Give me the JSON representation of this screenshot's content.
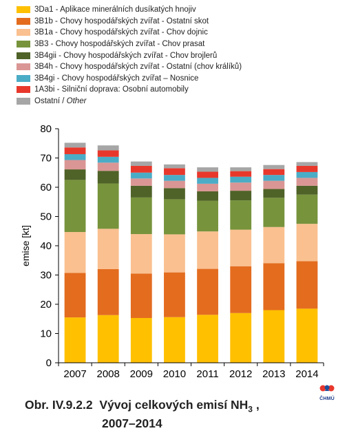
{
  "chart_data": {
    "type": "bar",
    "stacked": true,
    "categories": [
      "2007",
      "2008",
      "2009",
      "2010",
      "2011",
      "2012",
      "2013",
      "2014"
    ],
    "ylabel": "emise [kt]",
    "ylim": [
      0,
      80
    ],
    "yticks": [
      0,
      10,
      20,
      30,
      40,
      50,
      60,
      70,
      80
    ],
    "grid": false,
    "legend_position": "top-left",
    "series": [
      {
        "name": "3Da1 - Aplikace minerálních dusíkatých hnojiv",
        "color": "#FFC000",
        "values": [
          15.5,
          16.3,
          15.3,
          15.6,
          16.4,
          17.0,
          18.0,
          18.5
        ]
      },
      {
        "name": "3B1b - Chovy hospodářských zvířat - Ostatní skot",
        "color": "#E36C1F",
        "values": [
          15.2,
          15.7,
          15.2,
          15.3,
          15.7,
          16.0,
          16.0,
          16.2
        ]
      },
      {
        "name": "3B1a - Chovy hospodářských zvířat - Chov dojnic",
        "color": "#FAC090",
        "values": [
          14.0,
          13.8,
          13.5,
          13.0,
          12.8,
          12.5,
          12.4,
          12.8
        ]
      },
      {
        "name": "3B3 - Chovy hospodářských zvířat - Chov prasat",
        "color": "#77933C",
        "values": [
          17.8,
          15.5,
          12.5,
          12.0,
          10.5,
          10.0,
          10.0,
          10.0
        ]
      },
      {
        "name": "3B4gii - Chovy hospodářských zvířat - Chov brojlerů",
        "color": "#4F6228",
        "values": [
          3.6,
          4.3,
          4.0,
          3.8,
          3.2,
          3.3,
          3.0,
          3.0
        ]
      },
      {
        "name": "3B4h - Chovy hospodářských zvířat - Ostatní (chov králíků)",
        "color": "#DA9694",
        "values": [
          3.2,
          2.8,
          2.5,
          2.5,
          2.6,
          2.8,
          2.8,
          2.7
        ]
      },
      {
        "name": "3B4gi - Chovy hospodářských zvířat – Nosnice",
        "color": "#4BACC6",
        "values": [
          2.0,
          2.0,
          2.0,
          2.0,
          2.0,
          2.0,
          2.0,
          2.0
        ]
      },
      {
        "name": "1A3bi - Silniční doprava: Osobní automobily",
        "color": "#E8382C",
        "values": [
          2.3,
          2.2,
          2.3,
          2.3,
          2.1,
          1.9,
          2.0,
          2.1
        ]
      },
      {
        "name": "Ostatní / Other",
        "color": "#A6A6A6",
        "values": [
          1.6,
          1.7,
          1.5,
          1.3,
          1.5,
          1.3,
          1.4,
          1.3
        ]
      }
    ]
  },
  "legend": {
    "items": [
      {
        "label": "3Da1 - Aplikace minerálních dusíkatých hnojiv",
        "color": "#FFC000"
      },
      {
        "label": "3B1b - Chovy hospodářských zvířat - Ostatní skot",
        "color": "#E36C1F"
      },
      {
        "label": "3B1a - Chovy hospodářských zvířat - Chov dojnic",
        "color": "#FAC090"
      },
      {
        "label": "3B3 - Chovy hospodářských zvířat - Chov prasat",
        "color": "#77933C"
      },
      {
        "label": "3B4gii - Chovy hospodářských zvířat - Chov brojlerů",
        "color": "#4F6228"
      },
      {
        "label": "3B4h - Chovy hospodářských zvířat - Ostatní (chov králíků)",
        "color": "#DA9694"
      },
      {
        "label": "3B4gi - Chovy hospodářských zvířat – Nosnice",
        "color": "#4BACC6"
      },
      {
        "label": "1A3bi - Silniční doprava: Osobní automobily",
        "color": "#E8382C"
      },
      {
        "label": "Ostatní / ",
        "label_italic": "Other",
        "color": "#A6A6A6"
      }
    ]
  },
  "caption": {
    "prefix": "Obr. IV.9.2.2",
    "text": "Vývoj celkových emisí NH",
    "subscript": "3",
    "suffix": " ,",
    "line2": "2007–2014"
  },
  "logo": {
    "text": "ČHMÚ",
    "icon": "chmu-logo-icon",
    "colors": {
      "primary": "#E8382C",
      "secondary": "#1F4E9A"
    }
  }
}
